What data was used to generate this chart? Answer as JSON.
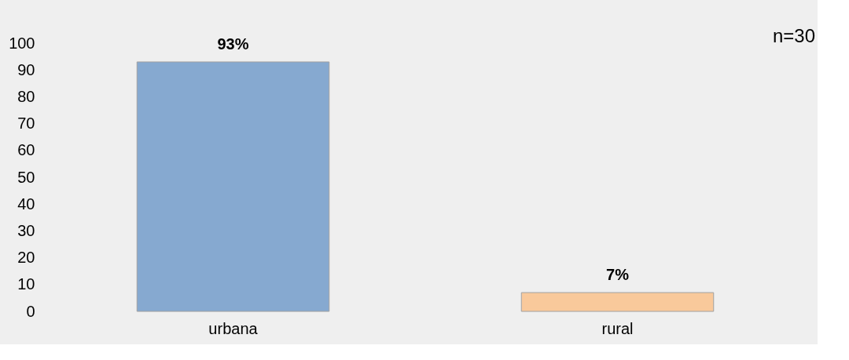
{
  "chart_data": {
    "type": "bar",
    "categories": [
      "urbana",
      "rural"
    ],
    "values": [
      93,
      7
    ],
    "colors": [
      "#86a9d0",
      "#f9c99b"
    ],
    "value_labels": [
      "93%",
      "7%"
    ],
    "ylim": [
      0,
      100
    ],
    "yticks": [
      0,
      10,
      20,
      30,
      40,
      50,
      60,
      70,
      80,
      90,
      100
    ],
    "grid": false,
    "annotations": [
      "n=30"
    ]
  }
}
